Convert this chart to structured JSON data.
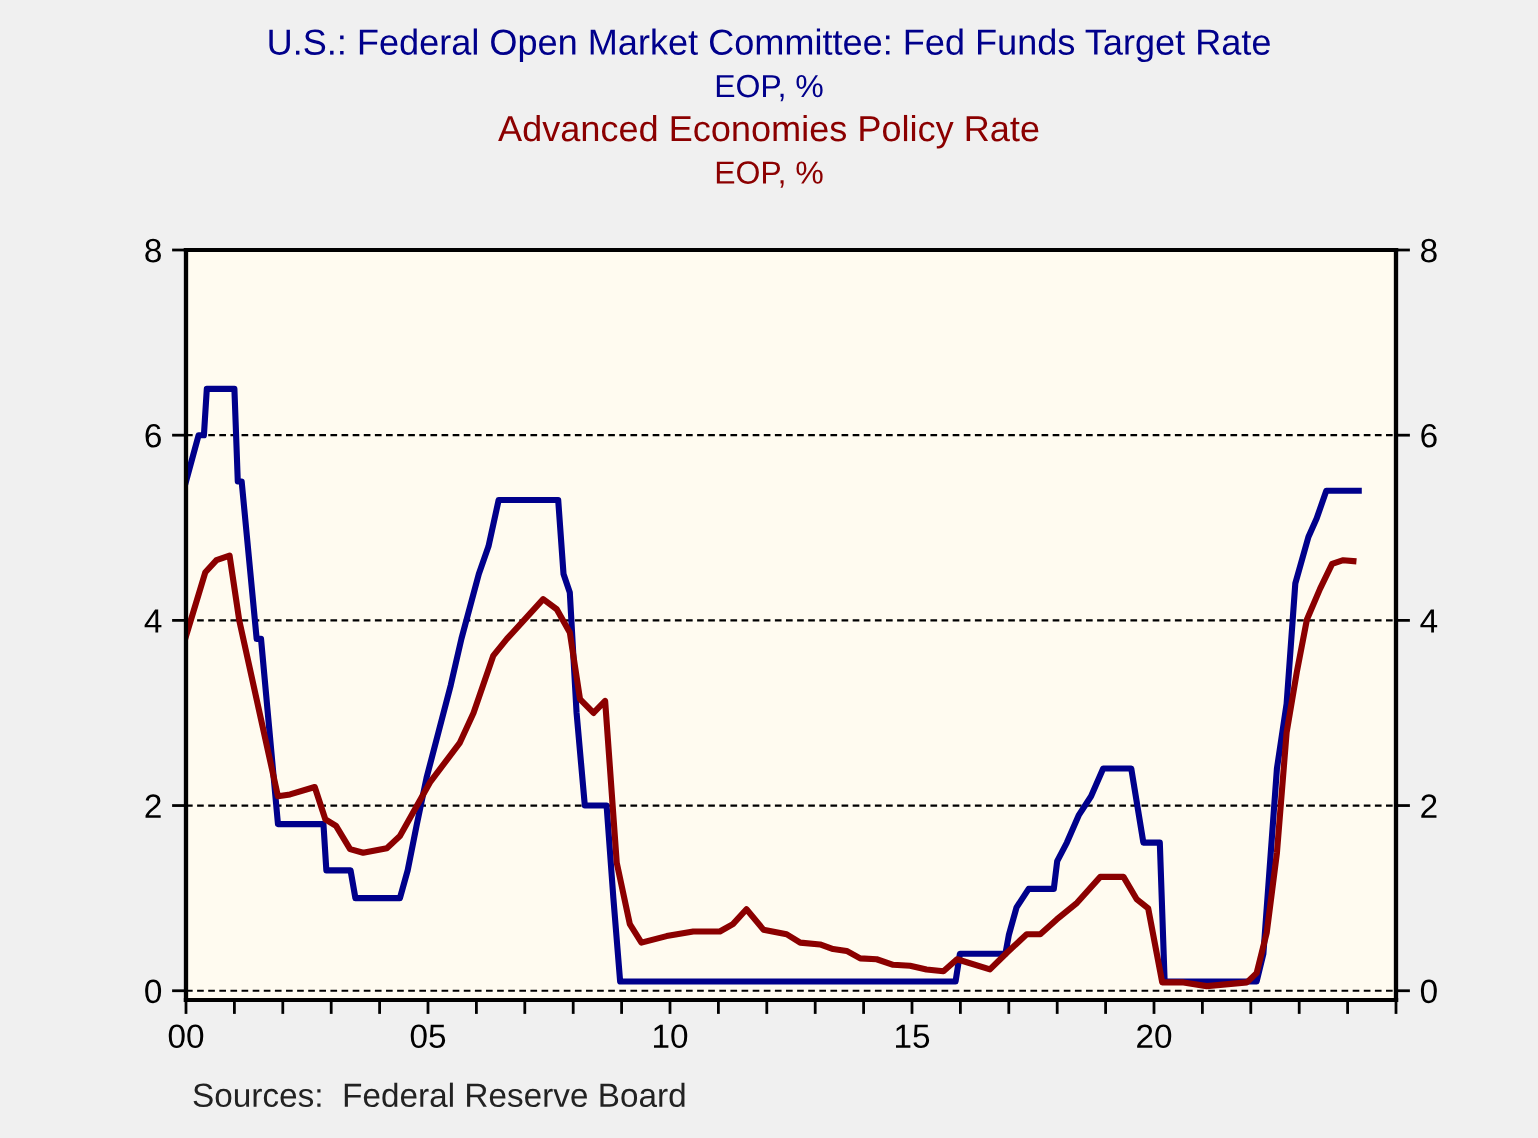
{
  "chart_data": {
    "type": "line",
    "legend": "top",
    "grid": "y",
    "line_style": "solid",
    "marker": "none",
    "xlim": [
      0,
      25
    ],
    "xticks": [
      {
        "value": 0,
        "label": "00"
      },
      {
        "value": 1,
        "label": null
      },
      {
        "value": 2,
        "label": null
      },
      {
        "value": 3,
        "label": null
      },
      {
        "value": 4,
        "label": null
      },
      {
        "value": 5,
        "label": "05"
      },
      {
        "value": 6,
        "label": null
      },
      {
        "value": 7,
        "label": null
      },
      {
        "value": 8,
        "label": null
      },
      {
        "value": 9,
        "label": null
      },
      10,
      {
        "value": 11,
        "label": null
      },
      {
        "value": 12,
        "label": null
      },
      {
        "value": 13,
        "label": null
      },
      {
        "value": 14,
        "label": null
      },
      15,
      {
        "value": 16,
        "label": null
      },
      {
        "value": 17,
        "label": null
      },
      {
        "value": 18,
        "label": null
      },
      {
        "value": 19,
        "label": null
      },
      20,
      {
        "value": 21,
        "label": null
      },
      {
        "value": 22,
        "label": null
      },
      {
        "value": 23,
        "label": null
      },
      {
        "value": 24,
        "label": null
      },
      {
        "value": 25,
        "label": null
      }
    ],
    "ylim": [
      -0.1,
      8
    ],
    "yticks": [
      0,
      2,
      4,
      6,
      8
    ],
    "y2lim": [
      -0.1,
      8
    ],
    "y2ticks": [
      0,
      2,
      4,
      6,
      8
    ],
    "series": [
      {
        "name": "U.S.: Federal Open Market Committee: Fed Funds Target Rate\nEOP, %",
        "color": "#00008b",
        "x": [
          0.0,
          0.26,
          0.37,
          0.43,
          1.0,
          1.07,
          1.15,
          1.46,
          1.55,
          1.9,
          2.84,
          2.9,
          3.4,
          3.5,
          4.42,
          4.58,
          4.77,
          4.97,
          5.22,
          5.47,
          5.69,
          6.05,
          6.25,
          6.46,
          7.69,
          7.8,
          7.93,
          8.07,
          8.24,
          8.69,
          8.83,
          8.97,
          15.9,
          15.99,
          16.93,
          17.0,
          17.16,
          17.41,
          17.93,
          18.0,
          18.2,
          18.45,
          18.7,
          18.95,
          19.53,
          19.78,
          20.12,
          20.22,
          22.12,
          22.26,
          22.54,
          22.74,
          22.92,
          23.19,
          23.36,
          23.56,
          24.23
        ],
        "values": [
          5.5,
          6.0,
          6.0,
          6.5,
          6.5,
          5.5,
          5.5,
          3.8,
          3.8,
          1.8,
          1.8,
          1.3,
          1.3,
          1.0,
          1.0,
          1.3,
          1.8,
          2.3,
          2.8,
          3.3,
          3.8,
          4.5,
          4.8,
          5.3,
          5.3,
          4.5,
          4.3,
          3.0,
          2.0,
          2.0,
          1.0,
          0.1,
          0.1,
          0.4,
          0.4,
          0.6,
          0.9,
          1.1,
          1.1,
          1.4,
          1.6,
          1.9,
          2.1,
          2.4,
          2.4,
          1.6,
          1.6,
          0.1,
          0.1,
          0.4,
          2.4,
          3.1,
          4.4,
          4.9,
          5.1,
          5.4,
          5.4
        ]
      },
      {
        "name": "Advanced Economies Policy Rate\nEOP, %",
        "color": "#8b0000",
        "x": [
          0.0,
          0.4,
          0.63,
          0.9,
          1.1,
          1.9,
          2.15,
          2.66,
          2.88,
          3.1,
          3.39,
          3.66,
          4.15,
          4.42,
          5.04,
          5.66,
          5.94,
          6.35,
          6.63,
          7.38,
          7.66,
          7.93,
          8.14,
          8.42,
          8.66,
          8.9,
          9.17,
          9.41,
          9.93,
          10.48,
          11.03,
          11.3,
          11.58,
          11.93,
          12.41,
          12.69,
          13.1,
          13.37,
          13.65,
          13.93,
          14.27,
          14.61,
          14.96,
          15.3,
          15.65,
          15.93,
          16.61,
          16.96,
          17.37,
          17.65,
          17.99,
          18.41,
          18.89,
          19.37,
          19.64,
          19.88,
          20.17,
          20.61,
          21.09,
          21.92,
          22.12,
          22.33,
          22.54,
          22.74,
          22.95,
          23.16,
          23.43,
          23.68,
          23.91,
          24.12
        ],
        "values": [
          3.83,
          4.52,
          4.65,
          4.7,
          4.0,
          2.1,
          2.12,
          2.2,
          1.85,
          1.78,
          1.53,
          1.49,
          1.54,
          1.67,
          2.25,
          2.68,
          3.0,
          3.62,
          3.8,
          4.23,
          4.12,
          3.87,
          3.15,
          3.0,
          3.13,
          1.38,
          0.72,
          0.52,
          0.59,
          0.64,
          0.64,
          0.72,
          0.88,
          0.66,
          0.61,
          0.52,
          0.5,
          0.45,
          0.43,
          0.35,
          0.34,
          0.28,
          0.27,
          0.23,
          0.21,
          0.34,
          0.23,
          0.41,
          0.61,
          0.61,
          0.77,
          0.95,
          1.23,
          1.23,
          0.99,
          0.89,
          0.09,
          0.09,
          0.05,
          0.09,
          0.19,
          0.63,
          1.49,
          2.79,
          3.44,
          4.01,
          4.34,
          4.61,
          4.65,
          4.64
        ]
      }
    ],
    "annotations": [
      "Sources:  Federal Reserve Board"
    ]
  }
}
